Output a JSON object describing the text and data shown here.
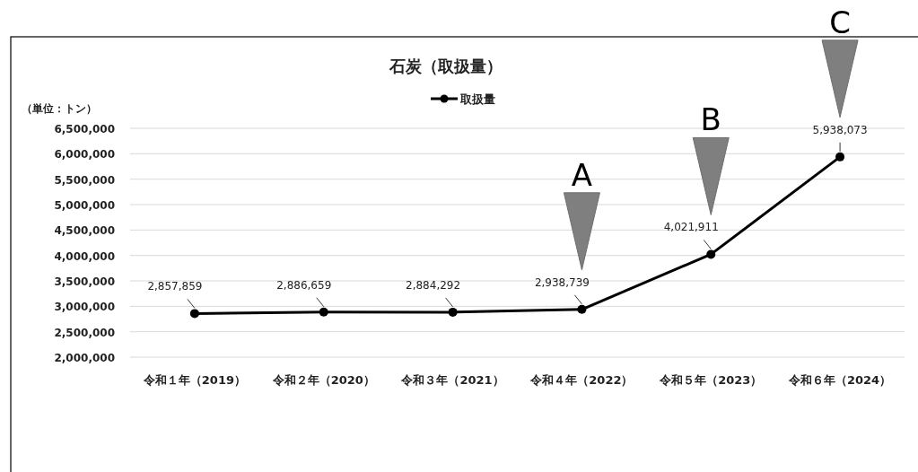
{
  "chart_data": {
    "type": "line",
    "title": "石炭（取扱量）",
    "ylabel": "（単位：トン）",
    "categories": [
      "令和１年（2019）",
      "令和２年（2020）",
      "令和３年（2021）",
      "令和４年（2022）",
      "令和５年（2023）",
      "令和６年（2024）"
    ],
    "series": [
      {
        "name": "取扱量",
        "color": "#000000",
        "values": [
          2857859,
          2886659,
          2884292,
          2938739,
          4021911,
          5938073
        ],
        "value_labels": [
          "2,857,859",
          "2,886,659",
          "2,884,292",
          "2,938,739",
          "4,021,911",
          "5,938,073"
        ]
      }
    ],
    "ylim": [
      2000000,
      6500000
    ],
    "yticks": [
      {
        "value": 2000000,
        "label": "2,000,000"
      },
      {
        "value": 2500000,
        "label": "2,500,000"
      },
      {
        "value": 3000000,
        "label": "3,000,000"
      },
      {
        "value": 3500000,
        "label": "3,500,000"
      },
      {
        "value": 4000000,
        "label": "4,000,000"
      },
      {
        "value": 4500000,
        "label": "4,500,000"
      },
      {
        "value": 5000000,
        "label": "5,000,000"
      },
      {
        "value": 5500000,
        "label": "5,500,000"
      },
      {
        "value": 6000000,
        "label": "6,000,000"
      },
      {
        "value": 6500000,
        "label": "6,500,000"
      }
    ],
    "grid": "y",
    "legend": "top",
    "marker": "circle",
    "line_style": "solid",
    "annotations": [
      "A",
      "B",
      "C"
    ]
  }
}
